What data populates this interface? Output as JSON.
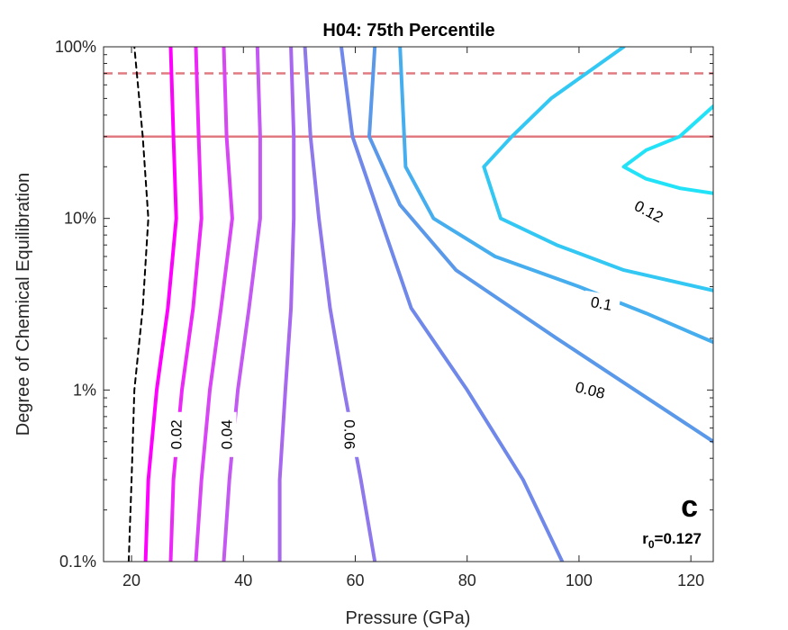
{
  "chart_data": {
    "type": "line",
    "title": "H04: 75th Percentile",
    "xlabel": "Pressure (GPa)",
    "ylabel": "Degree of Chemical Equilibration",
    "xlim": [
      15,
      124
    ],
    "ylim": [
      0.1,
      100
    ],
    "yscale": "log",
    "xticks": [
      20,
      40,
      60,
      80,
      100,
      120
    ],
    "xtick_labels": [
      "20",
      "40",
      "60",
      "80",
      "100",
      "120"
    ],
    "yticks": [
      0.1,
      1,
      10,
      100
    ],
    "ytick_labels": [
      "0.1%",
      "1%",
      "10%",
      "100%"
    ],
    "grid": false,
    "panel_letter": "c",
    "r0_label": {
      "r": "r",
      "sub": "0",
      "value": "=0.127"
    },
    "hlines": [
      {
        "y": 70,
        "style": "dashed",
        "color": "#e07a80"
      },
      {
        "y": 30,
        "style": "solid",
        "color": "#e07a80"
      }
    ],
    "contour_labels": [
      "0.02",
      "0.04",
      "0.06",
      "0.08",
      "0.1",
      "0.12"
    ],
    "series": [
      {
        "style": "dashed",
        "color": "#000000",
        "points": [
          [
            19.5,
            0.1
          ],
          [
            20,
            0.3
          ],
          [
            20.5,
            1
          ],
          [
            22,
            3
          ],
          [
            23,
            10
          ],
          [
            22,
            30
          ],
          [
            20.5,
            100
          ]
        ]
      },
      {
        "color": "#ff00ff",
        "points": [
          [
            22.5,
            0.1
          ],
          [
            23,
            0.3
          ],
          [
            24.5,
            1
          ],
          [
            26.5,
            3
          ],
          [
            28,
            10
          ],
          [
            27.5,
            30
          ],
          [
            27,
            100
          ]
        ]
      },
      {
        "color": "#ec28f8",
        "points": [
          [
            27,
            0.1
          ],
          [
            27.5,
            0.3
          ],
          [
            29,
            1
          ],
          [
            31,
            3
          ],
          [
            32.5,
            10
          ],
          [
            32,
            30
          ],
          [
            31.5,
            100
          ]
        ]
      },
      {
        "color": "#d845f5",
        "points": [
          [
            31.5,
            0.1
          ],
          [
            32.5,
            0.3
          ],
          [
            34,
            1
          ],
          [
            36,
            3
          ],
          [
            38,
            10
          ],
          [
            37,
            30
          ],
          [
            36.5,
            100
          ]
        ]
      },
      {
        "color": "#c458f2",
        "points": [
          [
            36.5,
            0.1
          ],
          [
            37.5,
            0.3
          ],
          [
            39,
            1
          ],
          [
            41,
            3
          ],
          [
            43,
            10
          ],
          [
            43,
            30
          ],
          [
            42.5,
            100
          ]
        ]
      },
      {
        "color": "#a768ef",
        "points": [
          [
            46.5,
            0.1
          ],
          [
            46.5,
            0.3
          ],
          [
            47.5,
            1
          ],
          [
            48.5,
            3
          ],
          [
            49,
            10
          ],
          [
            49,
            30
          ],
          [
            48.5,
            100
          ]
        ]
      },
      {
        "color": "#8f77ec",
        "points": [
          [
            63.5,
            0.1
          ],
          [
            61,
            0.3
          ],
          [
            58,
            1
          ],
          [
            55.5,
            3
          ],
          [
            53.5,
            10
          ],
          [
            52,
            30
          ],
          [
            51,
            100
          ]
        ]
      },
      {
        "color": "#6f88ea",
        "points": [
          [
            97,
            0.1
          ],
          [
            90,
            0.3
          ],
          [
            80,
            1
          ],
          [
            70,
            3
          ],
          [
            64.5,
            10
          ],
          [
            59.5,
            30
          ],
          [
            57.5,
            100
          ]
        ]
      },
      {
        "color": "#5a98ea",
        "points": [
          [
            124,
            0.5
          ],
          [
            110,
            1
          ],
          [
            96,
            2
          ],
          [
            78,
            5
          ],
          [
            68,
            12
          ],
          [
            62.5,
            30
          ],
          [
            63.5,
            100
          ]
        ]
      },
      {
        "color": "#46aeee",
        "points": [
          [
            124,
            1.9
          ],
          [
            112,
            2.8
          ],
          [
            100,
            4
          ],
          [
            85,
            6
          ],
          [
            74,
            10
          ],
          [
            69,
            20
          ],
          [
            68,
            100
          ]
        ]
      },
      {
        "color": "#32c8f3",
        "points": [
          [
            124,
            3.8
          ],
          [
            108,
            5
          ],
          [
            96,
            7
          ],
          [
            86,
            10
          ],
          [
            83,
            20
          ],
          [
            88,
            30
          ],
          [
            95,
            50
          ],
          [
            108,
            100
          ]
        ]
      },
      {
        "color": "#22e2f8",
        "points": [
          [
            124,
            14
          ],
          [
            118,
            15
          ],
          [
            112,
            17
          ],
          [
            108,
            20
          ],
          [
            112,
            25
          ],
          [
            118,
            30
          ],
          [
            124,
            45
          ]
        ]
      }
    ],
    "label_positions": [
      {
        "label": 0,
        "x": 28,
        "y": 0.55,
        "angle": -90
      },
      {
        "label": 1,
        "x": 37,
        "y": 0.55,
        "angle": -90
      },
      {
        "label": 2,
        "x": 59,
        "y": 0.55,
        "angle": 90
      },
      {
        "label": 3,
        "x": 102,
        "y": 1.0,
        "angle": 14
      },
      {
        "label": 4,
        "x": 104,
        "y": 3.2,
        "angle": 10
      },
      {
        "label": 5,
        "x": 112.5,
        "y": 11,
        "angle": 28
      }
    ]
  }
}
